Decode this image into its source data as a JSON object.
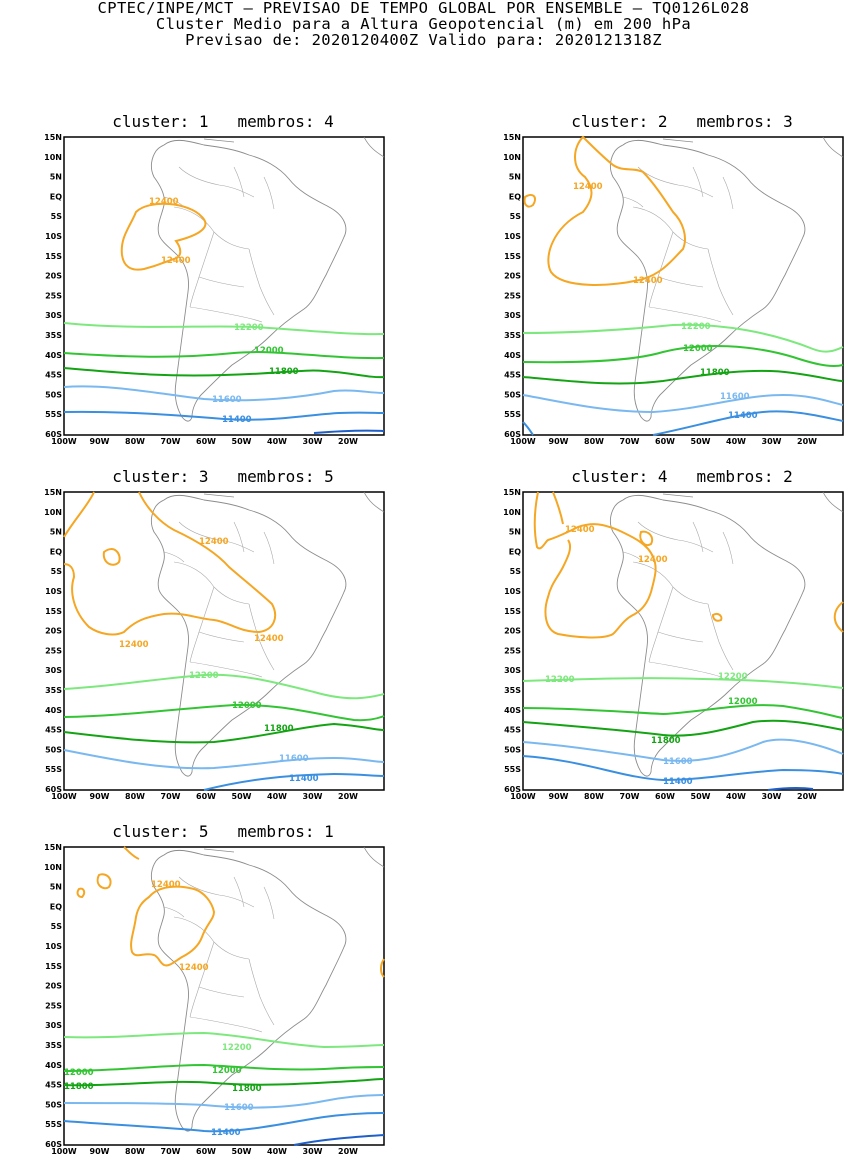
{
  "header": {
    "line1": "CPTEC/INPE/MCT – PREVISAO DE TEMPO GLOBAL POR ENSEMBLE – TQ0126L028",
    "line2": "Cluster Medio para a Altura Geopotencial (m) em 200 hPa",
    "line3": "Previsao de: 2020120400Z    Valido para: 2020121318Z"
  },
  "axes": {
    "lat_labels": [
      "15N",
      "10N",
      "5N",
      "EQ",
      "5S",
      "10S",
      "15S",
      "20S",
      "25S",
      "30S",
      "35S",
      "40S",
      "45S",
      "50S",
      "55S",
      "60S"
    ],
    "lon_labels": [
      "100W",
      "90W",
      "80W",
      "70W",
      "60W",
      "50W",
      "40W",
      "30W",
      "20W"
    ]
  },
  "colors": {
    "c12400": "#f5a623",
    "c12200": "#7de87d",
    "c12000": "#33c433",
    "c11800": "#13a313",
    "c11600": "#7ab8f0",
    "c11400": "#3a8fe0",
    "c11200": "#1f5fc8",
    "coast": "#8c8c8c",
    "border": "#a8a8a8"
  },
  "panels": [
    {
      "cluster_label": "cluster:",
      "cluster": "1",
      "membros_label": "membros:",
      "membros": "4",
      "labels": {
        "a": "12400",
        "b": "12400",
        "c": "12200",
        "d": "12000",
        "e": "11800",
        "f": "11600",
        "g": "11400"
      }
    },
    {
      "cluster_label": "cluster:",
      "cluster": "2",
      "membros_label": "membros:",
      "membros": "3",
      "labels": {
        "a": "12400",
        "b": "12400",
        "c": "12200",
        "d": "12000",
        "e": "11800",
        "f": "11600",
        "g": "11400"
      }
    },
    {
      "cluster_label": "cluster:",
      "cluster": "3",
      "membros_label": "membros:",
      "membros": "5",
      "labels": {
        "a": "12400",
        "b": "12400",
        "b2": "12400",
        "c": "12200",
        "d": "12000",
        "e": "11800",
        "f": "11600",
        "g": "11400"
      }
    },
    {
      "cluster_label": "cluster:",
      "cluster": "4",
      "membros_label": "membros:",
      "membros": "2",
      "labels": {
        "a": "12400",
        "b": "12400",
        "c": "12200",
        "c2": "12200",
        "d": "12000",
        "e": "11800",
        "f": "11600",
        "g": "11400"
      }
    },
    {
      "cluster_label": "cluster:",
      "cluster": "5",
      "membros_label": "membros:",
      "membros": "1",
      "labels": {
        "a": "12400",
        "b": "12400",
        "c": "12200",
        "d": "12000",
        "d2": "12000",
        "e": "11800",
        "e2": "11800",
        "f": "11600",
        "g": "11400"
      }
    }
  ]
}
